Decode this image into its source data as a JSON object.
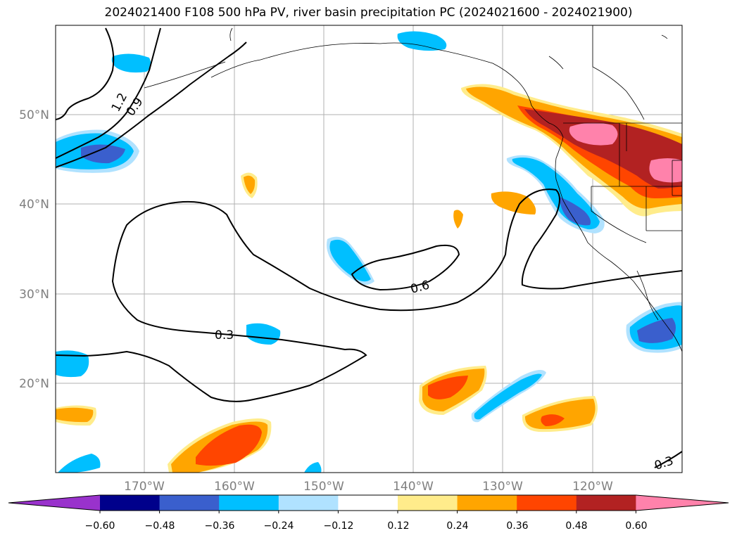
{
  "title": "2024021400 F108 500 hPa PV, river basin precipitation PC (2024021600 - 2024021900)",
  "axes": {
    "lat_labels": [
      "50°N",
      "40°N",
      "30°N",
      "20°N"
    ],
    "lon_labels": [
      "170°W",
      "160°W",
      "150°W",
      "140°W",
      "130°W",
      "120°W"
    ]
  },
  "contour_labels": [
    "1.2",
    "0.9",
    "0.6",
    "0.3",
    "0.3"
  ],
  "colorbar": {
    "colors": [
      "#9932cc",
      "#00008b",
      "#3a5fcd",
      "#00bfff",
      "#b0e2ff",
      "#ffffff",
      "#ffec8b",
      "#ffa500",
      "#ff4500",
      "#b22222",
      "#ff82ab"
    ],
    "ticks": [
      "−0.60",
      "−0.48",
      "−0.36",
      "−0.24",
      "−0.12",
      "0.12",
      "0.24",
      "0.36",
      "0.48",
      "0.60"
    ]
  }
}
